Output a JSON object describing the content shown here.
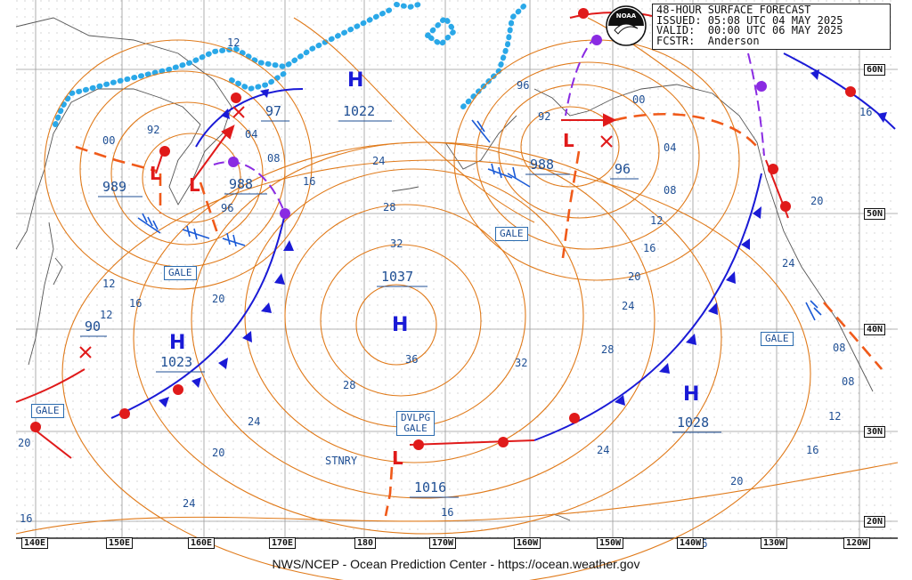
{
  "header": {
    "line1": "48-HOUR SURFACE FORECAST",
    "line2": "ISSUED: 05:08 UTC 04 MAY 2025",
    "line3": "VALID:  00:00 UTC 06 MAY 2025",
    "line4": "FCSTR:  Anderson"
  },
  "logo_text": "NOAA",
  "footer": "NWS/NCEP - Ocean Prediction Center - https://ocean.weather.gov",
  "longitudes": [
    "140E",
    "150E",
    "160E",
    "170E",
    "180",
    "170W",
    "160W",
    "150W",
    "140W",
    "130W",
    "120W"
  ],
  "latitudes": [
    "60N",
    "50N",
    "40N",
    "30N",
    "20N"
  ],
  "pressure_systems": [
    {
      "type": "H",
      "value": "1022"
    },
    {
      "type": "L",
      "value": "989"
    },
    {
      "type": "L",
      "value": "988"
    },
    {
      "type": "L",
      "value": "988"
    },
    {
      "type": "H",
      "value": "1037"
    },
    {
      "type": "H",
      "value": "1023"
    },
    {
      "type": "H",
      "value": "1028"
    },
    {
      "type": "L",
      "value": "1016"
    }
  ],
  "forecast_lows": [
    "97",
    "96",
    "90"
  ],
  "warnings": {
    "gale_1": "GALE",
    "gale_2": "GALE",
    "gale_3": "GALE",
    "gale_4": "GALE",
    "dvlpg_1": "DVLPG",
    "dvlpg_2": "GALE",
    "stnry": "STNRY"
  },
  "isobar_labels": [
    "12",
    "00",
    "92",
    "04",
    "08",
    "16",
    "96",
    "24",
    "28",
    "32",
    "36",
    "32",
    "28",
    "24",
    "20",
    "16",
    "12",
    "16",
    "20",
    "24",
    "28",
    "96",
    "92",
    "00",
    "04",
    "08",
    "12",
    "16",
    "20",
    "24",
    "24",
    "20",
    "16",
    "12",
    "08",
    "16",
    "20",
    "24",
    "20",
    "16",
    "12",
    "08",
    "16"
  ],
  "colors": {
    "isobar": "#e07a1a",
    "cold_front": "#1a1ad6",
    "warm_front": "#e01a1a",
    "occluded_front": "#8a2be2",
    "trough": "#f05a1a",
    "ice": "#2aa8e8",
    "label_blue": "#1f4f94"
  }
}
